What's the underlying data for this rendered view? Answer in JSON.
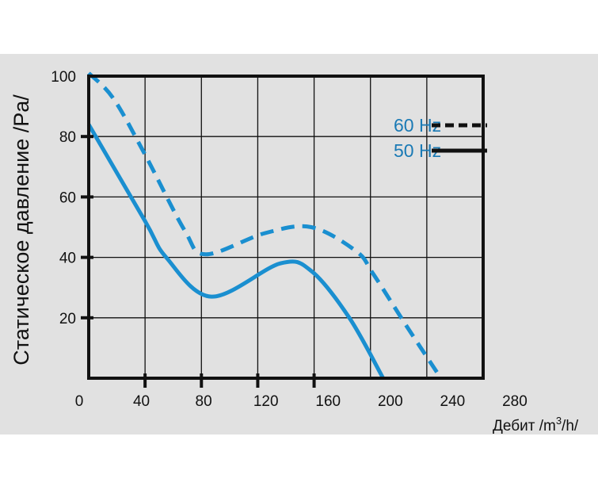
{
  "chart_data": {
    "type": "line",
    "xlabel": "Дебит /m³/h/",
    "xlabel_parts": {
      "prefix": "Дебит /m",
      "sup": "3",
      "suffix": "/h/"
    },
    "ylabel": "Статическое давление /Pa/",
    "xlim": [
      0,
      280
    ],
    "ylim": [
      0,
      100
    ],
    "xticks": [
      0,
      40,
      80,
      120,
      160,
      200,
      240,
      280
    ],
    "yticks": [
      20,
      40,
      60,
      80,
      100
    ],
    "grid": true,
    "legend_position": "top-right",
    "color": "#1a8fd0",
    "series": [
      {
        "name": "60 Hz",
        "style": "dashed",
        "x": [
          0,
          17.5,
          40,
          68,
          83,
          125,
          158,
          190,
          202,
          226,
          250
        ],
        "y": [
          101,
          92.6,
          74,
          49,
          41,
          48,
          50,
          42,
          34.5,
          17,
          0
        ]
      },
      {
        "name": "50 Hz",
        "style": "solid",
        "x": [
          0,
          40,
          55,
          87,
          136,
          158,
          185,
          209
        ],
        "y": [
          84,
          52,
          40,
          27,
          38,
          35.5,
          20,
          0
        ]
      }
    ]
  }
}
